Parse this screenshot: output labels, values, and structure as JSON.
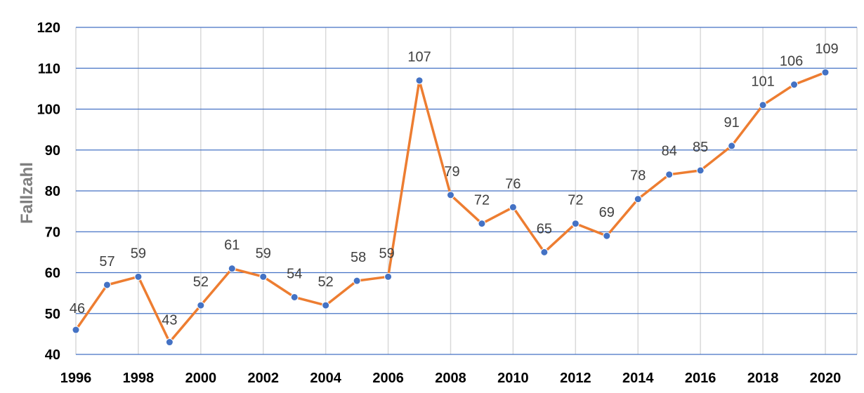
{
  "chart_data": {
    "type": "line",
    "title": "",
    "xlabel": "",
    "ylabel": "Fallzahl",
    "ylim": [
      40,
      120
    ],
    "yticks": [
      "40",
      "50",
      "60",
      "70",
      "80",
      "90",
      "100",
      "110",
      "120"
    ],
    "xticks": [
      "1996",
      "1998",
      "2000",
      "2002",
      "2004",
      "2006",
      "2008",
      "2010",
      "2012",
      "2014",
      "2016",
      "2018",
      "2020"
    ],
    "x": [
      1996,
      1997,
      1998,
      1999,
      2000,
      2001,
      2002,
      2003,
      2004,
      2005,
      2006,
      2007,
      2008,
      2009,
      2010,
      2011,
      2012,
      2013,
      2014,
      2015,
      2016,
      2017,
      2018,
      2019,
      2020
    ],
    "series": [
      {
        "values": [
          46,
          57,
          59,
          43,
          52,
          61,
          59,
          54,
          52,
          58,
          59,
          107,
          79,
          72,
          76,
          65,
          72,
          69,
          78,
          84,
          85,
          91,
          101,
          106,
          109
        ],
        "line_color": "#ed7d31",
        "marker_color": "#4472c4"
      }
    ],
    "grid": {
      "horizontal": true,
      "vertical": true,
      "horizontal_color": "#4472c4",
      "vertical_color": "#d9d9d9"
    },
    "data_labels": true,
    "legend": "none"
  }
}
